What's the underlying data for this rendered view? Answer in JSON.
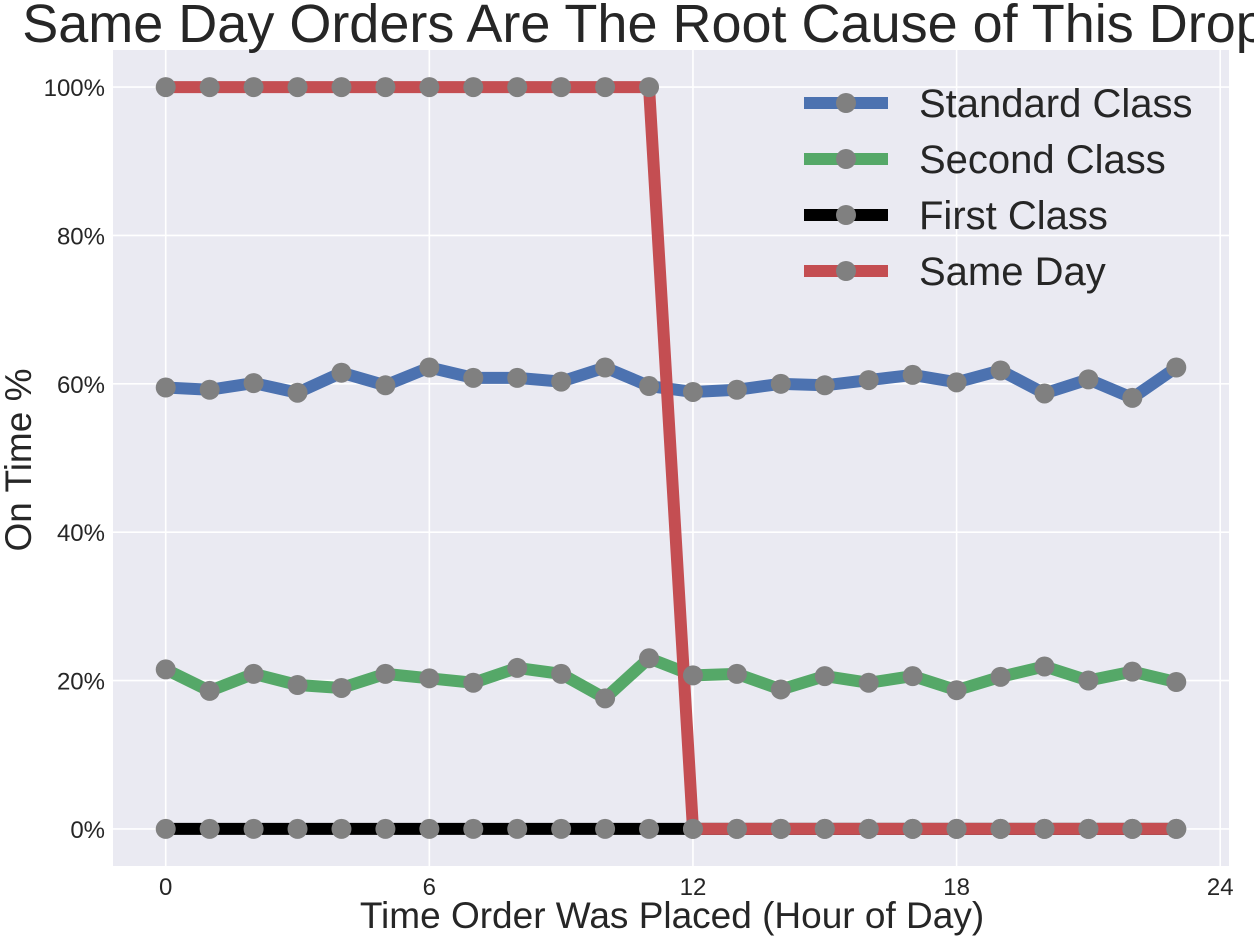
{
  "chart_data": {
    "type": "line",
    "title": "Same Day Orders Are The Root Cause of This Drop",
    "xlabel": "Time Order Was Placed (Hour of Day)",
    "ylabel": "On Time %",
    "x": [
      0,
      1,
      2,
      3,
      4,
      5,
      6,
      7,
      8,
      9,
      10,
      11,
      12,
      13,
      14,
      15,
      16,
      17,
      18,
      19,
      20,
      21,
      22,
      23
    ],
    "xlim": [
      -1.2,
      24.2
    ],
    "ylim": [
      -0.05,
      1.05
    ],
    "x_ticks": [
      0,
      6,
      12,
      18,
      24
    ],
    "x_tick_labels": [
      "0",
      "6",
      "12",
      "18",
      "24"
    ],
    "y_ticks": [
      0,
      0.2,
      0.4,
      0.6,
      0.8,
      1.0
    ],
    "y_tick_labels": [
      "0%",
      "20%",
      "40%",
      "60%",
      "80%",
      "100%"
    ],
    "grid": true,
    "legend_position": "top-right",
    "marker_color": "#808080",
    "series": [
      {
        "name": "Standard Class",
        "color": "#4c72b0",
        "values": [
          0.595,
          0.592,
          0.601,
          0.588,
          0.615,
          0.598,
          0.622,
          0.608,
          0.608,
          0.603,
          0.622,
          0.597,
          0.589,
          0.592,
          0.6,
          0.598,
          0.605,
          0.612,
          0.602,
          0.618,
          0.587,
          0.606,
          0.581,
          0.622
        ]
      },
      {
        "name": "Second Class",
        "color": "#55a868",
        "values": [
          0.215,
          0.186,
          0.209,
          0.194,
          0.19,
          0.209,
          0.203,
          0.197,
          0.217,
          0.209,
          0.176,
          0.23,
          0.207,
          0.209,
          0.188,
          0.206,
          0.197,
          0.206,
          0.187,
          0.205,
          0.219,
          0.2,
          0.212,
          0.198
        ]
      },
      {
        "name": "First Class",
        "color": "#000000",
        "values": [
          0,
          0,
          0,
          0,
          0,
          0,
          0,
          0,
          0,
          0,
          0,
          0,
          0,
          0,
          0,
          0,
          0,
          0,
          0,
          0,
          0,
          0,
          0,
          0
        ]
      },
      {
        "name": "Same Day",
        "color": "#c44e52",
        "values": [
          1,
          1,
          1,
          1,
          1,
          1,
          1,
          1,
          1,
          1,
          1,
          1,
          0,
          0,
          0,
          0,
          0,
          0,
          0,
          0,
          0,
          0,
          0,
          0
        ]
      }
    ]
  }
}
